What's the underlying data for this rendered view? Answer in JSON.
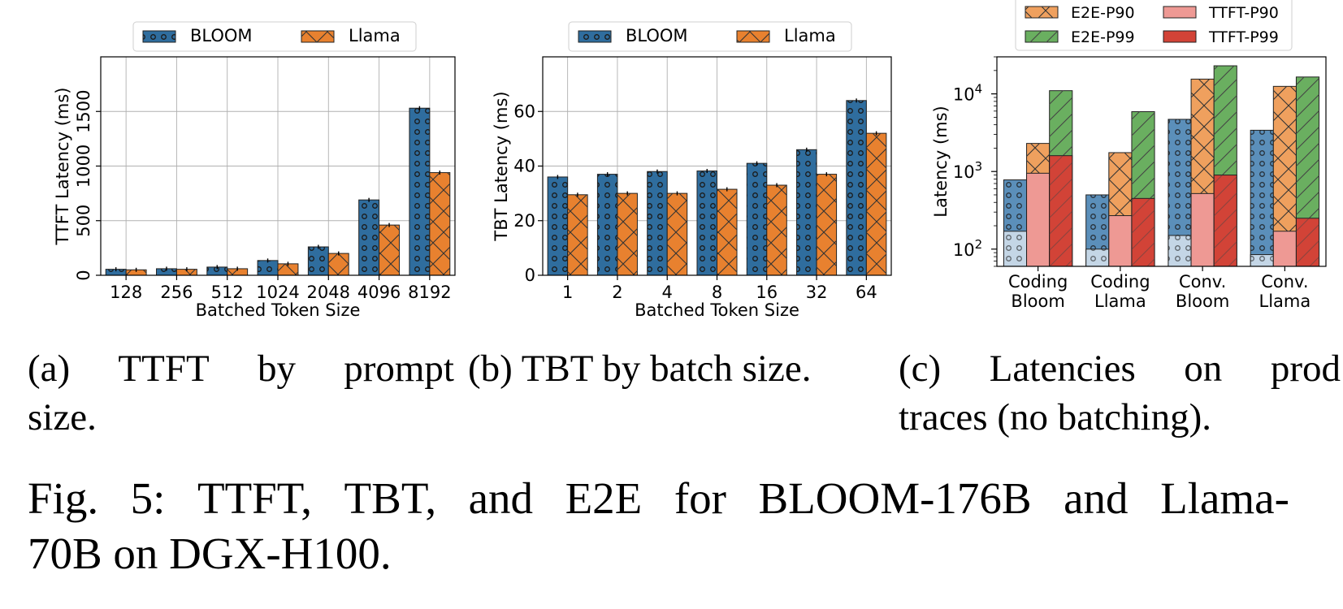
{
  "colors": {
    "bloom": "#2f6d9e",
    "llama": "#e8812f",
    "e2e_p90": "#efa05e",
    "e2e_p99": "#6aaf60",
    "ttft_p90": "#ee9994",
    "ttft_p99": "#d24337",
    "bg_bloom_p90": "#5b8fba",
    "bg_bloom_p50": "#c4d6e6"
  },
  "chart_data": [
    {
      "id": "a",
      "type": "bar",
      "ylabel": "TTFT Latency (ms)",
      "xlabel": "Batched Token Size",
      "categories": [
        "128",
        "256",
        "512",
        "1024",
        "2048",
        "4096",
        "8192"
      ],
      "yticks": [
        "0",
        "500",
        "1000",
        "1500"
      ],
      "ylim": [
        0,
        2000
      ],
      "grid": true,
      "legend": "top-center",
      "series": [
        {
          "name": "BLOOM",
          "values": [
            55,
            60,
            75,
            135,
            260,
            690,
            1530
          ]
        },
        {
          "name": "Llama",
          "values": [
            50,
            55,
            60,
            105,
            200,
            460,
            940
          ]
        }
      ]
    },
    {
      "id": "b",
      "type": "bar",
      "ylabel": "TBT Latency (ms)",
      "xlabel": "Batched Token Size",
      "categories": [
        "1",
        "2",
        "4",
        "8",
        "16",
        "32",
        "64"
      ],
      "yticks": [
        "0",
        "20",
        "40",
        "60"
      ],
      "ylim": [
        0,
        80
      ],
      "grid": true,
      "legend": "top-center",
      "series": [
        {
          "name": "BLOOM",
          "values": [
            36,
            37,
            38,
            38.2,
            41,
            46,
            64
          ]
        },
        {
          "name": "Llama",
          "values": [
            29.5,
            30,
            30,
            31.5,
            33,
            37,
            52
          ]
        }
      ]
    },
    {
      "id": "c",
      "type": "bar",
      "ylabel": "Latency (ms)",
      "yscale": "log",
      "ylim": [
        60,
        30000
      ],
      "yticks": [
        "10^2",
        "10^3",
        "10^4"
      ],
      "categories": [
        "Coding\nBloom",
        "Coding\nLlama",
        "Conv.\nBloom",
        "Conv.\nLlama"
      ],
      "legend": "top-center",
      "series": [
        {
          "name": "E2E-P90",
          "values": [
            2300,
            1750,
            15500,
            12500
          ]
        },
        {
          "name": "E2E-P99",
          "values": [
            11000,
            5900,
            23000,
            16500
          ]
        },
        {
          "name": "TTFT-P90",
          "values": [
            950,
            270,
            520,
            170
          ]
        },
        {
          "name": "TTFT-P99",
          "values": [
            1600,
            450,
            900,
            250
          ]
        }
      ],
      "background_series": [
        {
          "values": [
            780,
            500,
            4700,
            3400
          ]
        },
        {
          "values": [
            170,
            100,
            150,
            85
          ]
        }
      ]
    }
  ],
  "captions": {
    "a_line1": [
      "(a)",
      "TTFT",
      "by",
      "prompt"
    ],
    "a_line2": "size.",
    "b": "(b) TBT by batch size.",
    "c_line1": [
      "(c)",
      "Latencies",
      "on",
      "prod"
    ],
    "c_line2": "traces (no batching).",
    "figure_line1": [
      "Fig.",
      "5:",
      "TTFT,",
      "TBT,",
      "and",
      "E2E",
      "for",
      "BLOOM-176B",
      "and",
      "Llama-"
    ],
    "figure_line2": "70B on DGX-H100."
  }
}
